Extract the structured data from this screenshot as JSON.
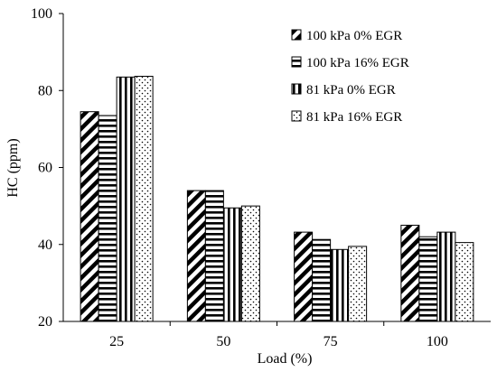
{
  "chart_data": {
    "type": "bar",
    "xlabel": "Load (%)",
    "ylabel": "HC (ppm)",
    "categories": [
      "25",
      "50",
      "75",
      "100"
    ],
    "ylim": [
      20,
      100
    ],
    "yticks": [
      20,
      40,
      60,
      80,
      100
    ],
    "grid": false,
    "legend_position": "top-right",
    "series": [
      {
        "name": "100 kPa 0% EGR",
        "pattern": "diagonal-stripes",
        "values": [
          74.5,
          54.0,
          43.2,
          45.0
        ]
      },
      {
        "name": "100 kPa 16% EGR",
        "pattern": "horizontal-stripes",
        "values": [
          73.5,
          54.0,
          41.3,
          42.0
        ]
      },
      {
        "name": "81 kPa 0% EGR",
        "pattern": "vertical-stripes",
        "values": [
          83.5,
          49.5,
          38.7,
          43.2
        ]
      },
      {
        "name": "81 kPa 16% EGR",
        "pattern": "dots",
        "values": [
          83.7,
          50.0,
          39.5,
          40.5
        ]
      }
    ]
  }
}
